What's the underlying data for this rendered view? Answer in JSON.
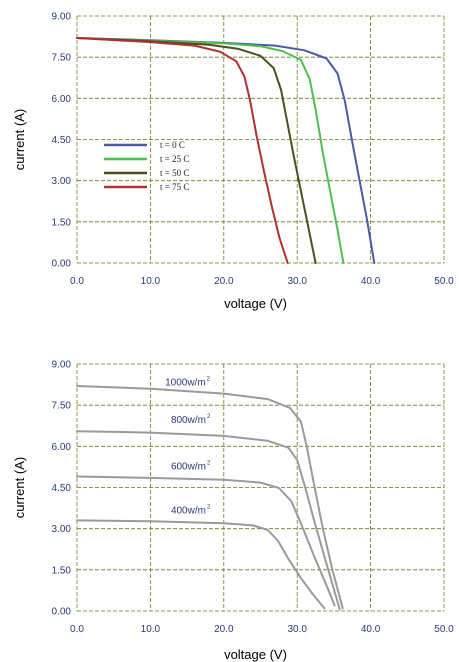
{
  "chart_data": [
    {
      "type": "line",
      "xlabel": "voltage (V)",
      "ylabel": "current (A)",
      "xlim": [
        0,
        50
      ],
      "ylim": [
        0,
        9
      ],
      "x_ticks": [
        "0.0",
        "10.0",
        "20.0",
        "30.0",
        "40.0",
        "50.0"
      ],
      "y_ticks": [
        "0.00",
        "1.50",
        "3.00",
        "4.50",
        "6.00",
        "7.50",
        "9.00"
      ],
      "grid": true,
      "legend_position": "left-center",
      "series": [
        {
          "name": "t = 0 C",
          "color": "#4a5aa8",
          "points": [
            [
              0,
              8.2
            ],
            [
              10,
              8.12
            ],
            [
              20,
              8.02
            ],
            [
              27,
              7.92
            ],
            [
              31,
              7.75
            ],
            [
              34,
              7.45
            ],
            [
              35.5,
              6.9
            ],
            [
              36.5,
              5.9
            ],
            [
              37.5,
              4.4
            ],
            [
              38.5,
              3.0
            ],
            [
              39.5,
              1.6
            ],
            [
              40.5,
              0.0
            ]
          ]
        },
        {
          "name": "t = 25 C",
          "color": "#4fbf4f",
          "points": [
            [
              0,
              8.2
            ],
            [
              10,
              8.1
            ],
            [
              20,
              8.0
            ],
            [
              25,
              7.9
            ],
            [
              28,
              7.72
            ],
            [
              30.5,
              7.4
            ],
            [
              31.7,
              6.7
            ],
            [
              32.5,
              5.6
            ],
            [
              33.5,
              4.0
            ],
            [
              34.5,
              2.6
            ],
            [
              35.5,
              1.2
            ],
            [
              36.3,
              0.0
            ]
          ]
        },
        {
          "name": "t = 50 C",
          "color": "#4d4f1c",
          "points": [
            [
              0,
              8.2
            ],
            [
              10,
              8.08
            ],
            [
              18,
              7.95
            ],
            [
              22,
              7.8
            ],
            [
              25,
              7.55
            ],
            [
              26.8,
              7.1
            ],
            [
              27.8,
              6.3
            ],
            [
              28.6,
              5.2
            ],
            [
              29.6,
              3.8
            ],
            [
              30.6,
              2.5
            ],
            [
              31.6,
              1.2
            ],
            [
              32.5,
              0.0
            ]
          ]
        },
        {
          "name": "t = 75 C",
          "color": "#b03030",
          "points": [
            [
              0,
              8.2
            ],
            [
              10,
              8.05
            ],
            [
              16,
              7.92
            ],
            [
              19.5,
              7.7
            ],
            [
              21.7,
              7.35
            ],
            [
              22.8,
              6.8
            ],
            [
              23.6,
              5.9
            ],
            [
              24.5,
              4.6
            ],
            [
              25.5,
              3.3
            ],
            [
              26.6,
              2.0
            ],
            [
              27.6,
              0.9
            ],
            [
              28.7,
              0.0
            ]
          ]
        }
      ]
    },
    {
      "type": "line",
      "xlabel": "voltage (V)",
      "ylabel": "current (A)",
      "xlim": [
        0,
        50
      ],
      "ylim": [
        0,
        9
      ],
      "x_ticks": [
        "0.0",
        "10.0",
        "20.0",
        "30.0",
        "40.0",
        "50.0"
      ],
      "y_ticks": [
        "0.00",
        "1.50",
        "3.00",
        "4.50",
        "6.00",
        "7.50",
        "9.00"
      ],
      "grid": true,
      "annotations": [
        {
          "text": "1000w/m",
          "sup": "2",
          "x": 12,
          "y": 8.22
        },
        {
          "text": "800w/m",
          "sup": "2",
          "x": 12.8,
          "y": 6.85
        },
        {
          "text": "600w/m",
          "sup": "2",
          "x": 12.8,
          "y": 5.15
        },
        {
          "text": "400w/m",
          "sup": "2",
          "x": 12.8,
          "y": 3.55
        }
      ],
      "series": [
        {
          "label": "1000w/m2",
          "color": "#9a9a9a",
          "points": [
            [
              0,
              8.2
            ],
            [
              10,
              8.1
            ],
            [
              20,
              7.92
            ],
            [
              26,
              7.72
            ],
            [
              29,
              7.4
            ],
            [
              30.5,
              6.9
            ],
            [
              31.3,
              6.0
            ],
            [
              32.3,
              4.6
            ],
            [
              33.5,
              3.0
            ],
            [
              34.8,
              1.5
            ],
            [
              36.2,
              0.1
            ]
          ]
        },
        {
          "label": "800w/m2",
          "color": "#9a9a9a",
          "points": [
            [
              0,
              6.55
            ],
            [
              10,
              6.5
            ],
            [
              20,
              6.38
            ],
            [
              26,
              6.2
            ],
            [
              28.8,
              5.95
            ],
            [
              30,
              5.5
            ],
            [
              31,
              4.6
            ],
            [
              32.3,
              3.3
            ],
            [
              33.8,
              1.9
            ],
            [
              35.2,
              0.6
            ],
            [
              35.8,
              0.05
            ]
          ]
        },
        {
          "label": "600w/m2",
          "color": "#9a9a9a",
          "points": [
            [
              0,
              4.9
            ],
            [
              10,
              4.85
            ],
            [
              20,
              4.78
            ],
            [
              25,
              4.68
            ],
            [
              27.5,
              4.48
            ],
            [
              29.2,
              4.0
            ],
            [
              30.5,
              3.2
            ],
            [
              32.3,
              2.0
            ],
            [
              34.2,
              0.8
            ],
            [
              35.1,
              0.2
            ]
          ]
        },
        {
          "label": "400w/m2",
          "color": "#9a9a9a",
          "points": [
            [
              0,
              3.3
            ],
            [
              10,
              3.27
            ],
            [
              20,
              3.2
            ],
            [
              24,
              3.12
            ],
            [
              26,
              2.95
            ],
            [
              27.4,
              2.55
            ],
            [
              28.8,
              1.9
            ],
            [
              30.5,
              1.2
            ],
            [
              32.3,
              0.55
            ],
            [
              33.7,
              0.1
            ]
          ]
        }
      ]
    }
  ]
}
